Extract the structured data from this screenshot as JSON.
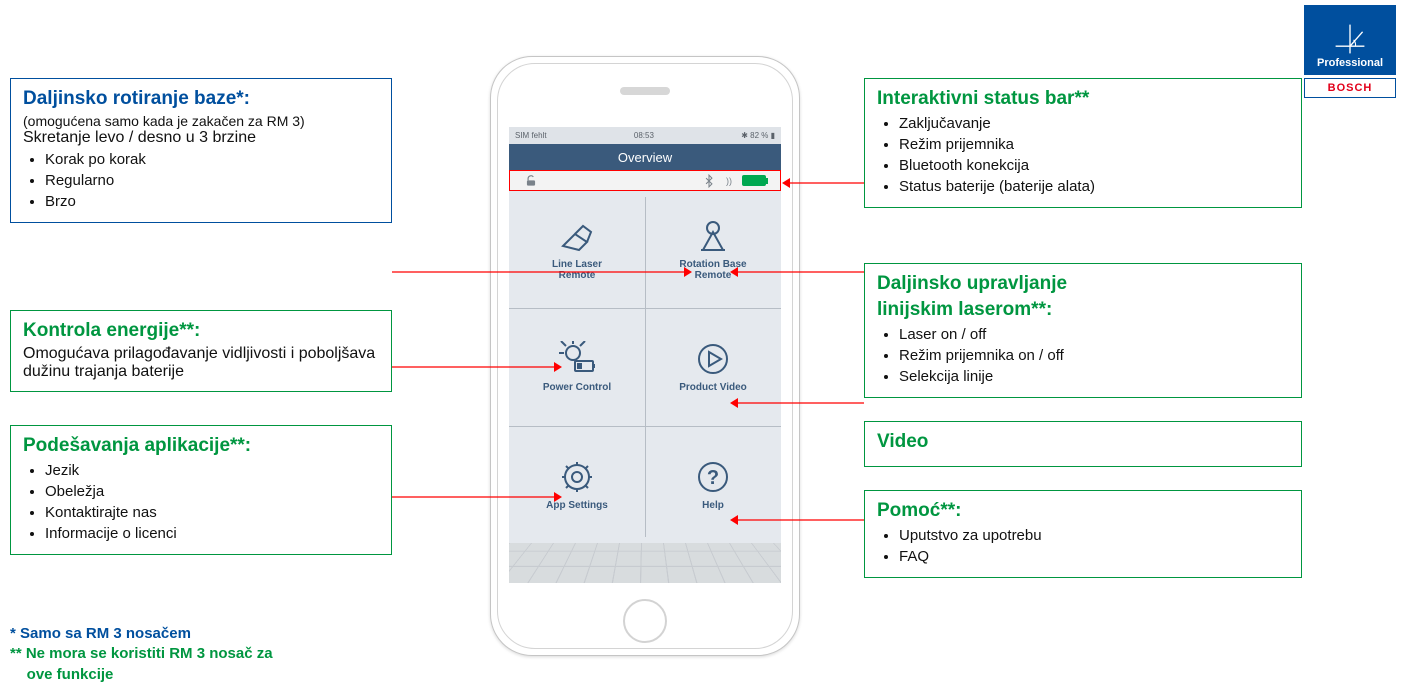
{
  "logo": {
    "top_label": "Professional",
    "bottom_label": "BOSCH",
    "bg": "#004f9e",
    "accent": "#e2001a"
  },
  "left_boxes": {
    "rotation": {
      "title": "Daljinsko rotiranje baze*:",
      "subnote": "(omogućena samo kada je zakačen za RM 3)",
      "subtitle": "Skretanje levo / desno u 3 brzine",
      "items": [
        "Korak po korak",
        "Regularno",
        "Brzo"
      ]
    },
    "energy": {
      "title": "Kontrola energije**:",
      "body": "Omogućava prilagođavanje vidljivosti i poboljšava dužinu trajanja baterije"
    },
    "settings": {
      "title": "Podešavanja aplikacije**:",
      "items": [
        "Jezik",
        "Obeležja",
        "Kontaktirajte nas",
        "Informacije o licenci"
      ]
    }
  },
  "right_boxes": {
    "status": {
      "title": "Interaktivni status bar**",
      "items": [
        "Zaključavanje",
        "Režim prijemnika",
        "Bluetooth konekcija",
        "Status baterije (baterije alata)"
      ]
    },
    "remote": {
      "title_l1": "Daljinsko upravljanje",
      "title_l2": "linijskim laserom**:",
      "items": [
        "Laser on / off",
        "Režim prijemnika on / off",
        "Selekcija linije"
      ]
    },
    "video": {
      "title": "Video"
    },
    "help": {
      "title": "Pomoć**:",
      "items": [
        "Uputstvo za upotrebu",
        "FAQ"
      ]
    }
  },
  "footnotes": {
    "l1": "*  Samo sa RM 3 nosačem",
    "l2": "** Ne mora se koristiti RM 3 nosač za",
    "l3": "    ove funkcije"
  },
  "phone": {
    "status_left": "SIM fehlt",
    "status_mid": "08:53",
    "status_right": "82 %",
    "header": "Overview",
    "tiles": {
      "line_laser": "Line Laser\nRemote",
      "rotation_base": "Rotation Base\nRemote",
      "power_control": "Power Control",
      "product_video": "Product Video",
      "app_settings": "App Settings",
      "help": "Help"
    }
  },
  "colors": {
    "green": "#009640",
    "blue": "#004f9e",
    "arrow": "#ff0000",
    "phone_header": "#3a5a7c",
    "screen_bg": "#e5e9ee"
  }
}
